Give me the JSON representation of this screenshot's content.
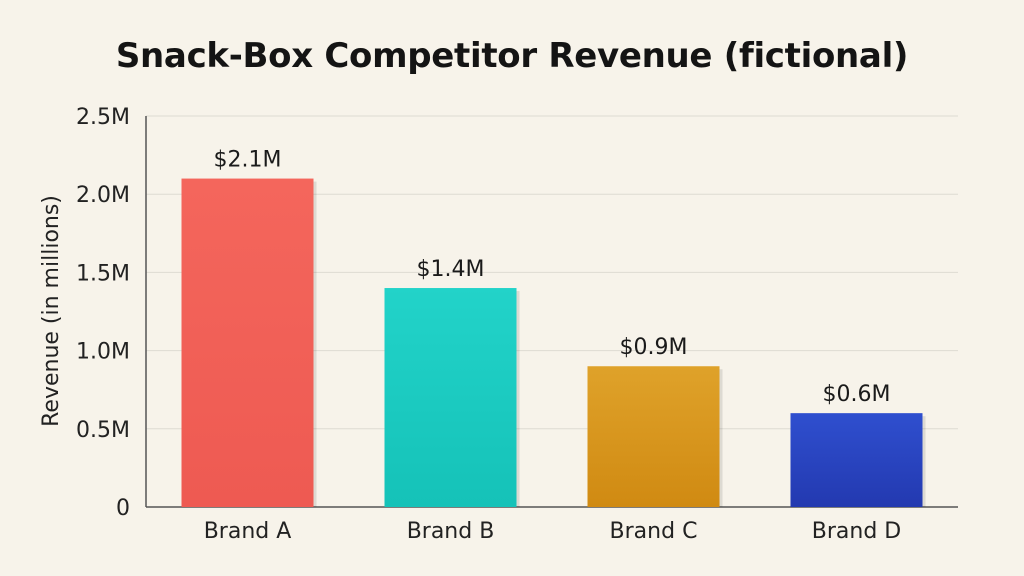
{
  "chart_data": {
    "type": "bar",
    "title": "Snack-Box Competitor Revenue (fictional)",
    "ylabel": "Revenue (in millions)",
    "xlabel": "",
    "categories": [
      "Brand A",
      "Brand B",
      "Brand C",
      "Brand D"
    ],
    "values": [
      2.1,
      1.4,
      0.9,
      0.6
    ],
    "data_labels": [
      "$2.1M",
      "$1.4M",
      "$0.9M",
      "$0.6M"
    ],
    "ylim": [
      0,
      2.5
    ],
    "yticks": [
      0,
      0.5,
      1.0,
      1.5,
      2.0,
      2.5
    ],
    "ytick_labels": [
      "0",
      "0.5M",
      "1.0M",
      "1.5M",
      "2.0M",
      "2.5M"
    ],
    "grid": true,
    "colors": [
      "#f4665c",
      "#22d3c9",
      "#dfa22a",
      "#2f4fcf"
    ],
    "colors_dark": [
      "#ee5a52",
      "#15c2b8",
      "#d08a12",
      "#2339b0"
    ]
  }
}
